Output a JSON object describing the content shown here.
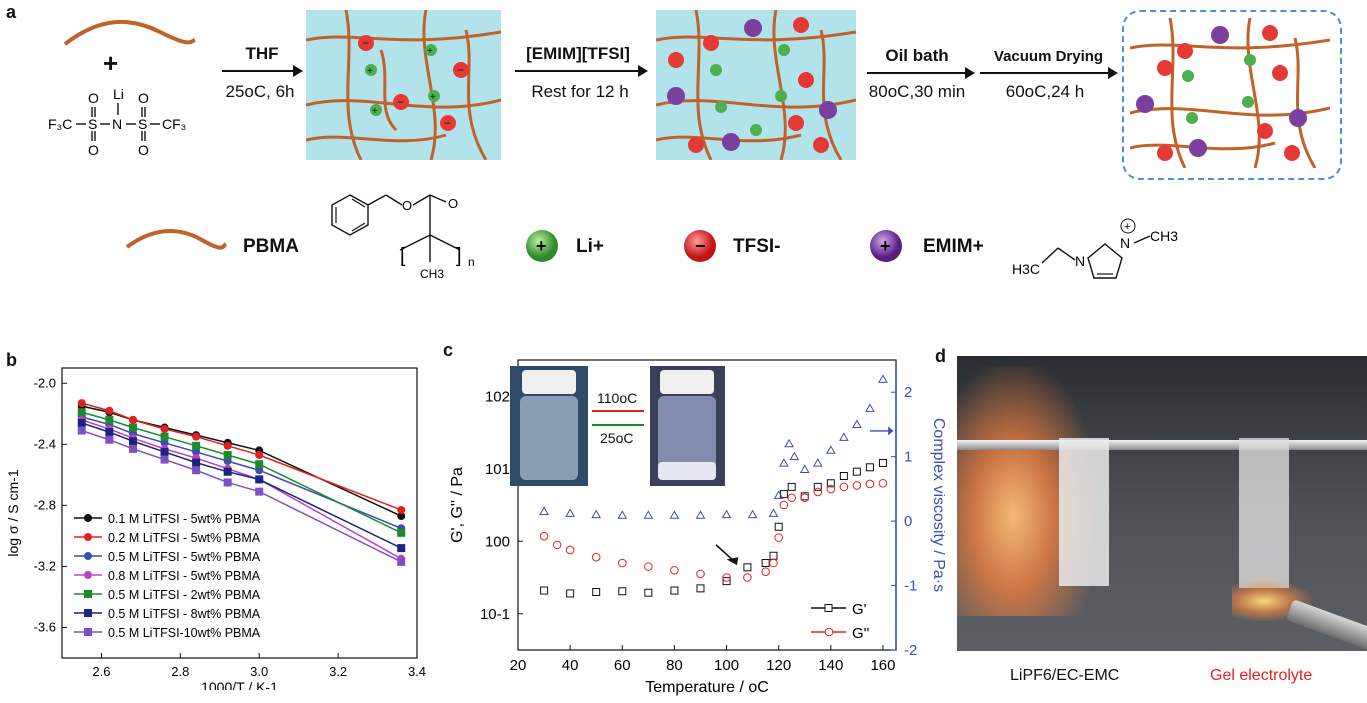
{
  "panel_a": {
    "label": "a",
    "reagents": {
      "plus": "+",
      "li": "Li",
      "left_group": "F3C−S−N−S−CF3",
      "o": "O"
    },
    "steps": [
      {
        "top": "THF",
        "bottom": "25oC, 6h"
      },
      {
        "top": "[EMIM][TFSI]",
        "bottom": "Rest for 12 h"
      },
      {
        "top": "Oil bath",
        "bottom": "80oC,30 min"
      },
      {
        "top": "Vacuum Drying",
        "bottom": "60oC,24 h"
      }
    ],
    "legend": [
      {
        "name": "PBMA",
        "type": "polymer"
      },
      {
        "name": "Li+",
        "type": "cation",
        "color": "#4caf50"
      },
      {
        "name": "TFSI-",
        "type": "anion",
        "color": "#e53935"
      },
      {
        "name": "EMIM+",
        "type": "cation",
        "color": "#7b3fa0"
      }
    ],
    "pbma_subscript": "n",
    "pbma_methyl": "CH3",
    "pbma_o": "O",
    "emim_left": "H3C",
    "emim_right": "CH3",
    "emim_n": "N",
    "colors": {
      "polymer": "#c0622a",
      "gel_bg": "#b3e3ea",
      "border_dash": "#4a90d9"
    }
  },
  "panel_b": {
    "label": "b",
    "chart_data": {
      "type": "line",
      "xlabel": "1000/T / K-1",
      "ylabel": "log σ / S cm-1",
      "xlim": [
        2.5,
        3.4
      ],
      "ylim": [
        -3.8,
        -1.9
      ],
      "xticks": [
        "2.6",
        "2.8",
        "3.0",
        "3.2",
        "3.4"
      ],
      "yticks": [
        "-2.0",
        "-2.4",
        "-2.8",
        "-3.2",
        "-3.6"
      ],
      "x": [
        2.55,
        2.62,
        2.68,
        2.76,
        2.84,
        2.92,
        3.0,
        3.36
      ],
      "series": [
        {
          "name": "0.1 M LiTFSI - 5wt% PBMA",
          "color": "#111111",
          "marker": "circle",
          "values": [
            -2.15,
            -2.19,
            -2.24,
            -2.29,
            -2.34,
            -2.39,
            -2.44,
            -2.87
          ]
        },
        {
          "name": "0.2 M LiTFSI - 5wt% PBMA",
          "color": "#e32020",
          "marker": "circle",
          "values": [
            -2.13,
            -2.18,
            -2.24,
            -2.3,
            -2.35,
            -2.41,
            -2.47,
            -2.83
          ]
        },
        {
          "name": "0.5 M LiTFSI - 5wt% PBMA",
          "color": "#3a4fb0",
          "marker": "circle",
          "values": [
            -2.22,
            -2.27,
            -2.33,
            -2.39,
            -2.45,
            -2.51,
            -2.57,
            -2.95
          ]
        },
        {
          "name": "0.8 M LiTFSI - 5wt% PBMA",
          "color": "#c040c0",
          "marker": "circle",
          "values": [
            -2.24,
            -2.3,
            -2.36,
            -2.43,
            -2.49,
            -2.56,
            -2.63,
            -3.15
          ]
        },
        {
          "name": "0.5 M LiTFSI - 2wt% PBMA",
          "color": "#1e8a2e",
          "marker": "square",
          "values": [
            -2.19,
            -2.24,
            -2.29,
            -2.35,
            -2.41,
            -2.47,
            -2.53,
            -2.98
          ]
        },
        {
          "name": "0.5 M LiTFSI - 8wt% PBMA",
          "color": "#1a237e",
          "marker": "square",
          "values": [
            -2.26,
            -2.32,
            -2.38,
            -2.45,
            -2.52,
            -2.58,
            -2.63,
            -3.08
          ]
        },
        {
          "name": "0.5 M LiTFSI-10wt% PBMA",
          "color": "#8050c0",
          "marker": "square",
          "values": [
            -2.31,
            -2.37,
            -2.43,
            -2.5,
            -2.57,
            -2.65,
            -2.71,
            -3.17
          ]
        }
      ],
      "legend_position": "bottom-left"
    }
  },
  "panel_c": {
    "label": "c",
    "chart_data": {
      "type": "scatter",
      "xlabel": "Temperature / oC",
      "ylabel_left": "G', G'' / Pa",
      "ylabel_right": "Complex viscosity / Pa·s",
      "xlim": [
        20,
        165
      ],
      "ylim_left_log": [
        -1.5,
        2.5
      ],
      "ylim_right": [
        -2,
        2.5
      ],
      "xticks": [
        "20",
        "40",
        "60",
        "80",
        "100",
        "120",
        "140",
        "160"
      ],
      "yticks_left": [
        "10^-1",
        "10^0",
        "10^1",
        "10^2"
      ],
      "yticks_right": [
        "-2",
        "-1",
        "0",
        "1",
        "2"
      ],
      "series": [
        {
          "name": "G'",
          "color": "#111111",
          "marker": "square-open",
          "points": [
            [
              30,
              -0.68
            ],
            [
              40,
              -0.72
            ],
            [
              50,
              -0.7
            ],
            [
              60,
              -0.69
            ],
            [
              70,
              -0.71
            ],
            [
              80,
              -0.68
            ],
            [
              90,
              -0.65
            ],
            [
              100,
              -0.55
            ],
            [
              108,
              -0.36
            ],
            [
              115,
              -0.3
            ],
            [
              118,
              -0.2
            ],
            [
              120,
              0.2
            ],
            [
              122,
              0.65
            ],
            [
              125,
              0.75
            ],
            [
              130,
              0.62
            ],
            [
              135,
              0.75
            ],
            [
              140,
              0.8
            ],
            [
              145,
              0.9
            ],
            [
              150,
              0.96
            ],
            [
              155,
              1.02
            ],
            [
              160,
              1.08
            ]
          ]
        },
        {
          "name": "G''",
          "color": "#e32020",
          "marker": "circle-open",
          "points": [
            [
              30,
              0.07
            ],
            [
              35,
              -0.05
            ],
            [
              40,
              -0.12
            ],
            [
              50,
              -0.22
            ],
            [
              60,
              -0.3
            ],
            [
              70,
              -0.35
            ],
            [
              80,
              -0.4
            ],
            [
              90,
              -0.45
            ],
            [
              100,
              -0.5
            ],
            [
              108,
              -0.5
            ],
            [
              115,
              -0.42
            ],
            [
              118,
              -0.3
            ],
            [
              120,
              0.05
            ],
            [
              122,
              0.5
            ],
            [
              125,
              0.6
            ],
            [
              130,
              0.6
            ],
            [
              135,
              0.68
            ],
            [
              140,
              0.72
            ],
            [
              145,
              0.75
            ],
            [
              150,
              0.77
            ],
            [
              155,
              0.79
            ],
            [
              160,
              0.8
            ]
          ]
        },
        {
          "name": "Complex viscosity",
          "color": "#3a4fb0",
          "marker": "triangle-open",
          "axis": "right",
          "points": [
            [
              30,
              0.15
            ],
            [
              40,
              0.12
            ],
            [
              50,
              0.1
            ],
            [
              60,
              0.09
            ],
            [
              70,
              0.09
            ],
            [
              80,
              0.09
            ],
            [
              90,
              0.09
            ],
            [
              100,
              0.1
            ],
            [
              110,
              0.1
            ],
            [
              118,
              0.12
            ],
            [
              120,
              0.4
            ],
            [
              122,
              0.9
            ],
            [
              124,
              1.2
            ],
            [
              126,
              1.0
            ],
            [
              130,
              0.8
            ],
            [
              135,
              0.9
            ],
            [
              140,
              1.1
            ],
            [
              145,
              1.3
            ],
            [
              150,
              1.5
            ],
            [
              155,
              1.75
            ],
            [
              160,
              2.2
            ]
          ]
        }
      ],
      "inset_heat": "110oC",
      "inset_cool": "25oC",
      "arrow_target": "transition"
    }
  },
  "panel_d": {
    "label": "d",
    "caption_left": "LiPF6/EC-EMC",
    "caption_right": "Gel electrolyte",
    "caption_right_color": "#e32020"
  }
}
